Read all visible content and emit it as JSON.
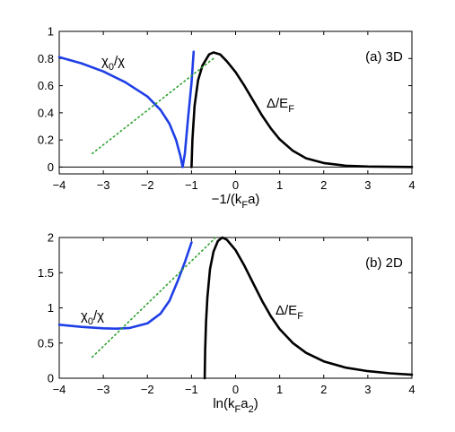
{
  "chart_data": [
    {
      "type": "line",
      "panel_label": "(a) 3D",
      "xlabel": "−1/(k_F a)",
      "xlim": [
        -4,
        4
      ],
      "ylim": [
        -0.05,
        1
      ],
      "xticks": [
        "−4",
        "−3",
        "−2",
        "−1",
        "0",
        "1",
        "2",
        "3",
        "4"
      ],
      "yticks": [
        "0",
        "0.2",
        "0.4",
        "0.6",
        "0.8",
        "1"
      ],
      "grid": false,
      "legend": "none",
      "series": [
        {
          "label_main": "χ",
          "label_sub": "0",
          "label_tail": "/χ",
          "color": "#1f3fe6",
          "points": [
            [
              -4.0,
              0.81
            ],
            [
              -3.5,
              0.765
            ],
            [
              -3.0,
              0.705
            ],
            [
              -2.5,
              0.625
            ],
            [
              -2.0,
              0.52
            ],
            [
              -1.7,
              0.42
            ],
            [
              -1.5,
              0.32
            ],
            [
              -1.35,
              0.2
            ],
            [
              -1.25,
              0.08
            ],
            [
              -1.2,
              0.0
            ],
            [
              -1.15,
              0.1
            ],
            [
              -1.08,
              0.35
            ],
            [
              -1.0,
              0.62
            ],
            [
              -0.95,
              0.85
            ]
          ]
        },
        {
          "label_main": "Δ/E",
          "label_sub": "F",
          "label_tail": "",
          "color": "#000000",
          "points": [
            [
              -1.0,
              0.0
            ],
            [
              -0.98,
              0.2
            ],
            [
              -0.93,
              0.45
            ],
            [
              -0.85,
              0.64
            ],
            [
              -0.75,
              0.75
            ],
            [
              -0.6,
              0.83
            ],
            [
              -0.5,
              0.845
            ],
            [
              -0.35,
              0.83
            ],
            [
              -0.2,
              0.78
            ],
            [
              0.0,
              0.7
            ],
            [
              0.2,
              0.6
            ],
            [
              0.4,
              0.49
            ],
            [
              0.6,
              0.38
            ],
            [
              0.8,
              0.285
            ],
            [
              1.0,
              0.205
            ],
            [
              1.3,
              0.12
            ],
            [
              1.6,
              0.065
            ],
            [
              2.0,
              0.03
            ],
            [
              2.5,
              0.01
            ],
            [
              3.0,
              0.004
            ],
            [
              4.0,
              0.001
            ]
          ]
        },
        {
          "label_main": "",
          "label_sub": "",
          "label_tail": "",
          "color": "#2ca02c",
          "dotted": true,
          "points": [
            [
              -3.25,
              0.1
            ],
            [
              -0.5,
              0.8
            ]
          ]
        }
      ],
      "hline": 0
    },
    {
      "type": "line",
      "panel_label": "(b) 2D",
      "xlabel": "ln(k_F a_2)",
      "xlim": [
        -4,
        4
      ],
      "ylim": [
        0,
        2
      ],
      "xticks": [
        "−4",
        "−3",
        "−2",
        "−1",
        "0",
        "1",
        "2",
        "3",
        "4"
      ],
      "yticks": [
        "0",
        "0.5",
        "1",
        "1.5",
        "2"
      ],
      "grid": false,
      "legend": "none",
      "series": [
        {
          "label_main": "χ",
          "label_sub": "0",
          "label_tail": "/χ",
          "color": "#1f3fe6",
          "points": [
            [
              -4.0,
              0.76
            ],
            [
              -3.5,
              0.73
            ],
            [
              -3.0,
              0.71
            ],
            [
              -2.7,
              0.705
            ],
            [
              -2.4,
              0.715
            ],
            [
              -2.0,
              0.78
            ],
            [
              -1.7,
              0.92
            ],
            [
              -1.5,
              1.1
            ],
            [
              -1.3,
              1.4
            ],
            [
              -1.15,
              1.65
            ],
            [
              -1.0,
              1.93
            ]
          ]
        },
        {
          "label_main": "Δ/E",
          "label_sub": "F",
          "label_tail": "",
          "color": "#000000",
          "points": [
            [
              -0.7,
              0.0
            ],
            [
              -0.69,
              0.4
            ],
            [
              -0.67,
              0.8
            ],
            [
              -0.64,
              1.15
            ],
            [
              -0.58,
              1.55
            ],
            [
              -0.5,
              1.8
            ],
            [
              -0.4,
              1.95
            ],
            [
              -0.3,
              2.0
            ],
            [
              -0.2,
              1.97
            ],
            [
              0.0,
              1.82
            ],
            [
              0.2,
              1.6
            ],
            [
              0.4,
              1.35
            ],
            [
              0.6,
              1.1
            ],
            [
              0.8,
              0.88
            ],
            [
              1.0,
              0.7
            ],
            [
              1.3,
              0.5
            ],
            [
              1.6,
              0.36
            ],
            [
              2.0,
              0.24
            ],
            [
              2.5,
              0.15
            ],
            [
              3.0,
              0.1
            ],
            [
              3.5,
              0.07
            ],
            [
              4.0,
              0.05
            ]
          ]
        },
        {
          "label_main": "",
          "label_sub": "",
          "label_tail": "",
          "color": "#2ca02c",
          "dotted": true,
          "points": [
            [
              -3.25,
              0.3
            ],
            [
              -0.45,
              2.0
            ]
          ]
        }
      ]
    }
  ]
}
